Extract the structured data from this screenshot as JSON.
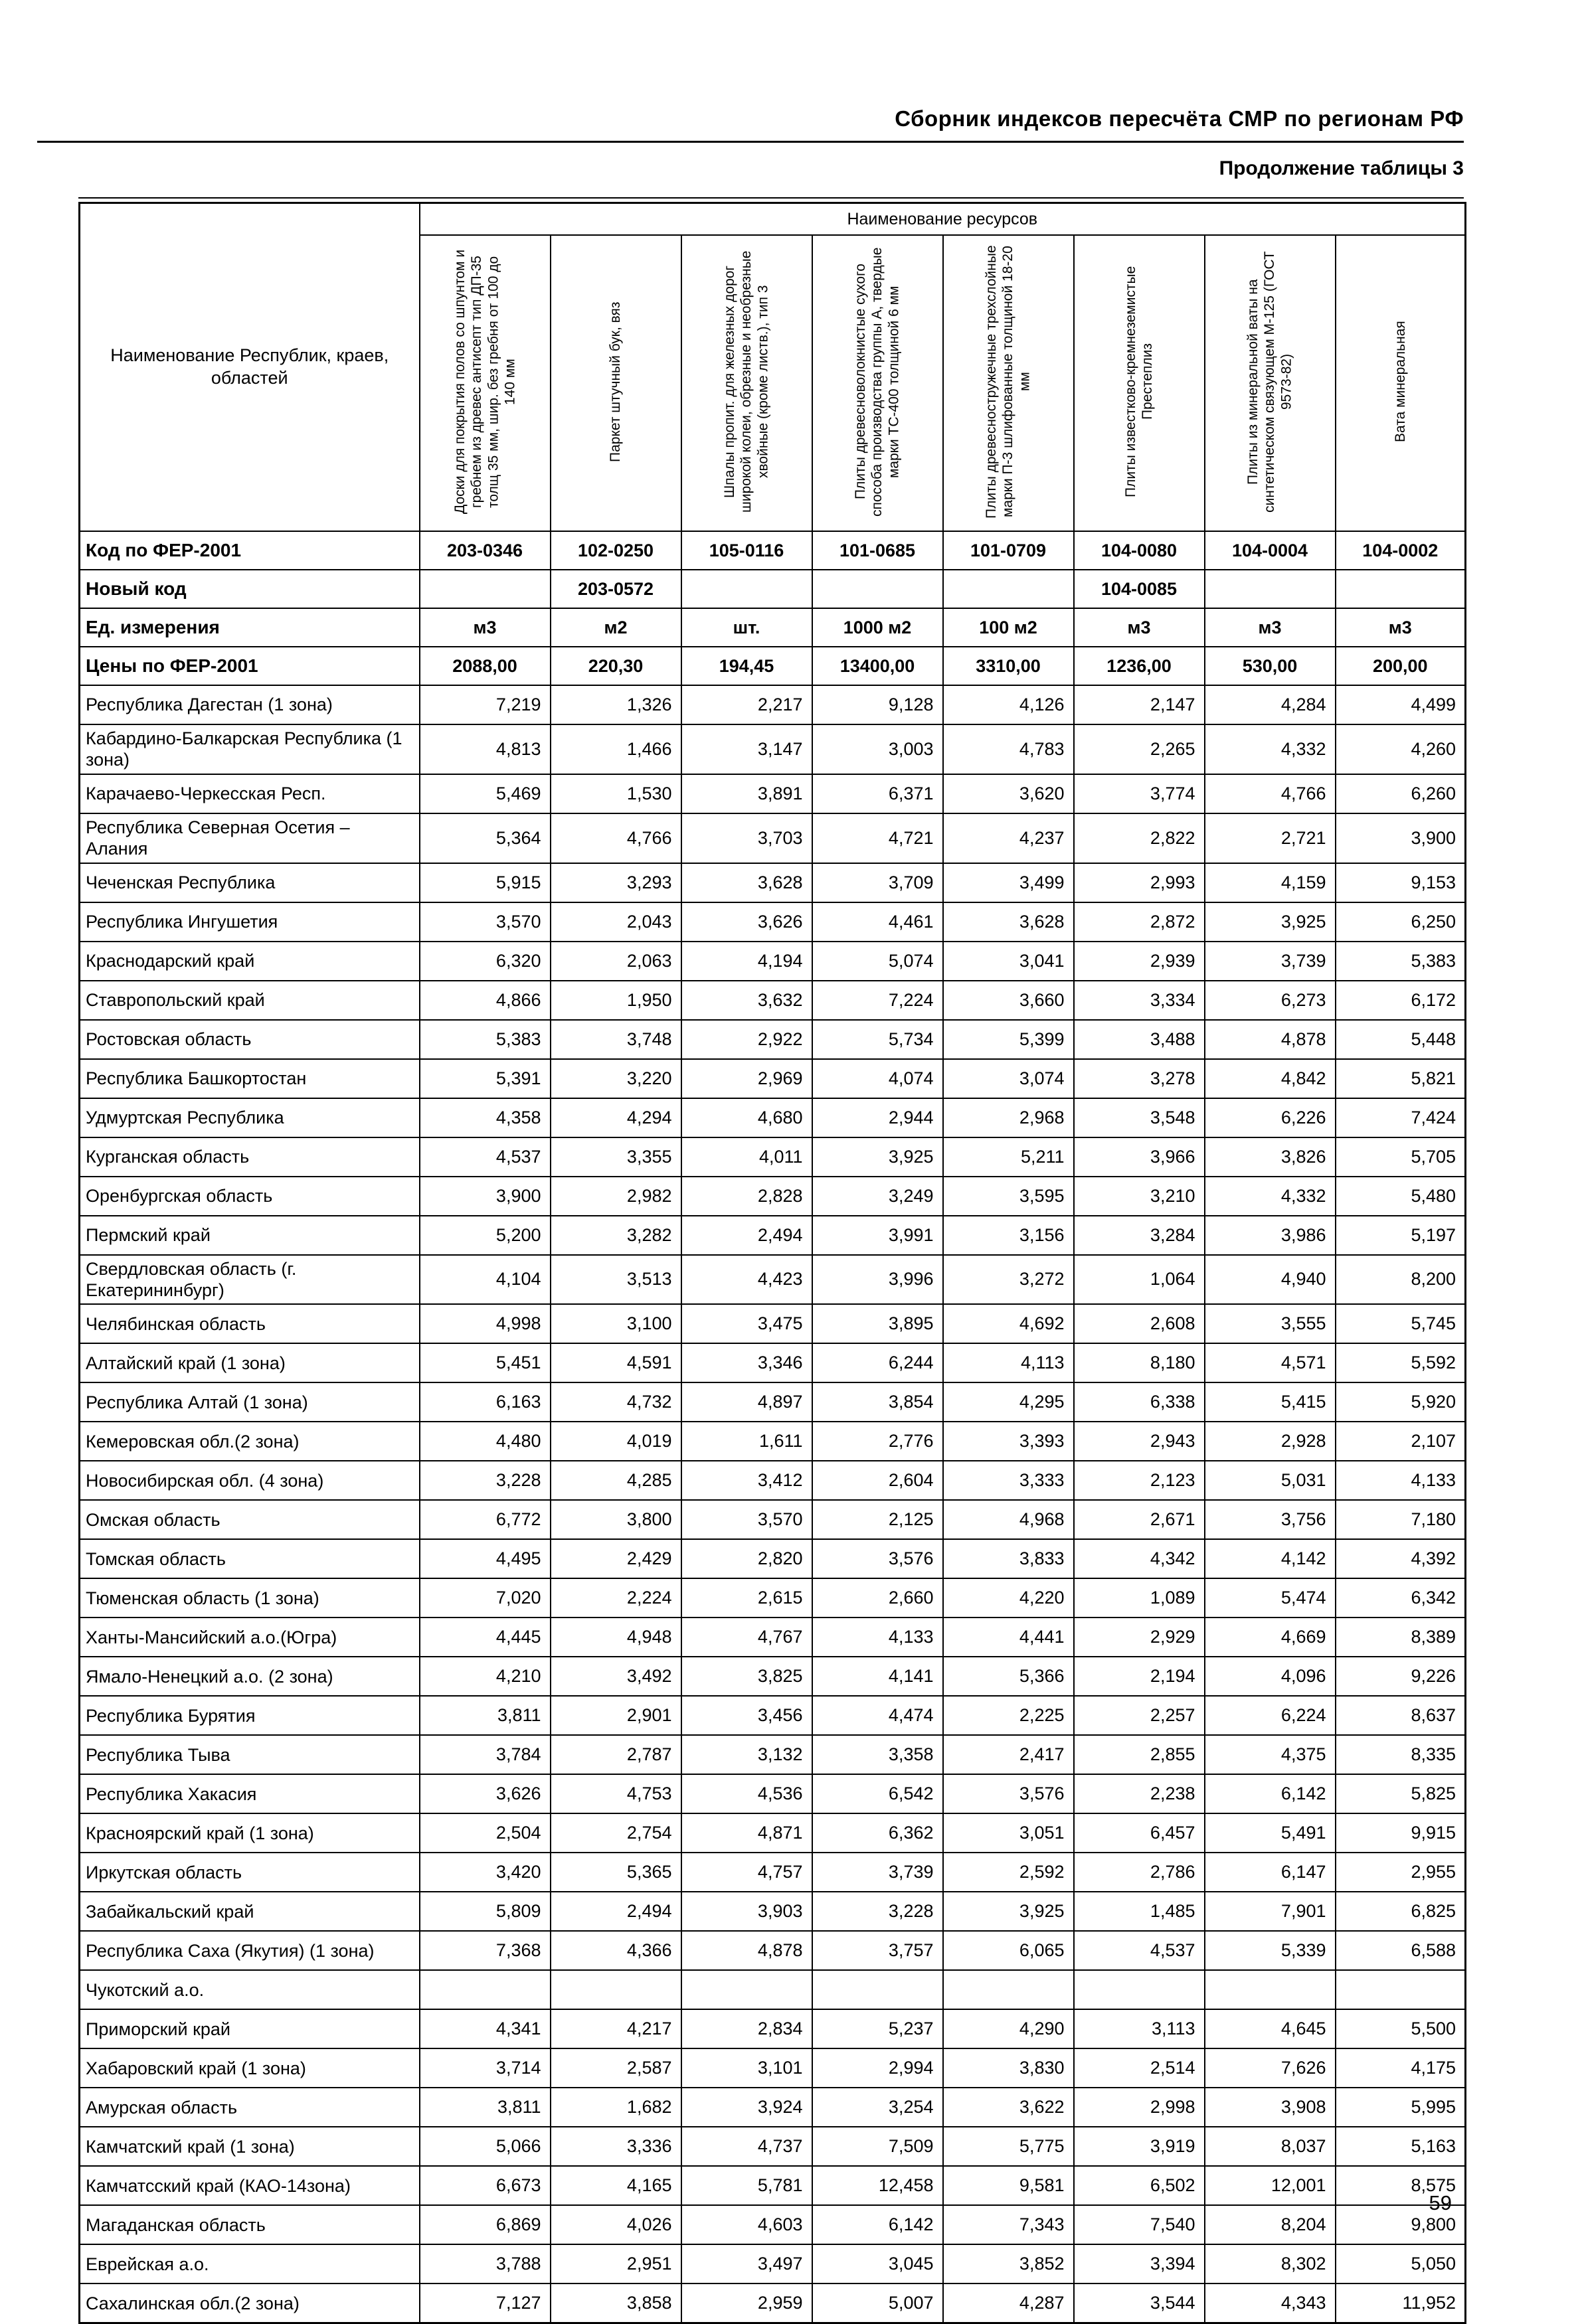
{
  "page": {
    "header_title": "Сборник индексов пересчёта СМР  по регионам РФ",
    "subtitle": "Продолжение таблицы 3",
    "page_number": "59"
  },
  "table": {
    "region_col_header": "Наименование Республик, краев, областей",
    "resources_header": "Наименование ресурсов",
    "columns": [
      "Доски для покрытия полов со шпунтом и гребнем из древес антисепт тип ДП-35 толщ 35 мм, шир. без гребня от 100 до 140 мм",
      "Паркет штучный бук, вяз",
      "Шпалы пропит. для железных дорог широкой колеи, обрезные и необрезные хвойные (кроме листв.), тип 3",
      "Плиты древесноволокнистые сухого способа производства группы А, твердые марки ТС-400 толщиной 6 мм",
      "Плиты древесностружечные трехслойные марки П-3 шлифованные толщиной 18-20 мм",
      "Плиты известково-кремнеземистые Престеплиз",
      "Плиты из минеральной ваты на синтетическом связующем М-125 (ГОСТ 9573-82)",
      "Вата минеральная"
    ],
    "meta_rows": [
      {
        "label": "Код по ФЕР-2001",
        "values": [
          "203-0346",
          "102-0250",
          "105-0116",
          "101-0685",
          "101-0709",
          "104-0080",
          "104-0004",
          "104-0002"
        ]
      },
      {
        "label": "Новый код",
        "values": [
          "",
          "203-0572",
          "",
          "",
          "",
          "104-0085",
          "",
          ""
        ]
      },
      {
        "label": "Ед. измерения",
        "values": [
          "м3",
          "м2",
          "шт.",
          "1000 м2",
          "100 м2",
          "м3",
          "м3",
          "м3"
        ]
      },
      {
        "label": "Цены по ФЕР-2001",
        "values": [
          "2088,00",
          "220,30",
          "194,45",
          "13400,00",
          "3310,00",
          "1236,00",
          "530,00",
          "200,00"
        ]
      }
    ],
    "rows": [
      {
        "region": "Республика Дагестан (1 зона)",
        "values": [
          "7,219",
          "1,326",
          "2,217",
          "9,128",
          "4,126",
          "2,147",
          "4,284",
          "4,499"
        ]
      },
      {
        "region": "Кабардино-Балкарская Республика (1 зона)",
        "values": [
          "4,813",
          "1,466",
          "3,147",
          "3,003",
          "4,783",
          "2,265",
          "4,332",
          "4,260"
        ]
      },
      {
        "region": "Карачаево-Черкесская Респ.",
        "values": [
          "5,469",
          "1,530",
          "3,891",
          "6,371",
          "3,620",
          "3,774",
          "4,766",
          "6,260"
        ]
      },
      {
        "region": "Республика Северная Осетия – Алания",
        "values": [
          "5,364",
          "4,766",
          "3,703",
          "4,721",
          "4,237",
          "2,822",
          "2,721",
          "3,900"
        ]
      },
      {
        "region": "Чеченская Республика",
        "values": [
          "5,915",
          "3,293",
          "3,628",
          "3,709",
          "3,499",
          "2,993",
          "4,159",
          "9,153"
        ]
      },
      {
        "region": "Республика Ингушетия",
        "values": [
          "3,570",
          "2,043",
          "3,626",
          "4,461",
          "3,628",
          "2,872",
          "3,925",
          "6,250"
        ]
      },
      {
        "region": "Краснодарский край",
        "values": [
          "6,320",
          "2,063",
          "4,194",
          "5,074",
          "3,041",
          "2,939",
          "3,739",
          "5,383"
        ]
      },
      {
        "region": "Ставропольский край",
        "values": [
          "4,866",
          "1,950",
          "3,632",
          "7,224",
          "3,660",
          "3,334",
          "6,273",
          "6,172"
        ]
      },
      {
        "region": "Ростовская область",
        "values": [
          "5,383",
          "3,748",
          "2,922",
          "5,734",
          "5,399",
          "3,488",
          "4,878",
          "5,448"
        ]
      },
      {
        "region": "Республика Башкортостан",
        "values": [
          "5,391",
          "3,220",
          "2,969",
          "4,074",
          "3,074",
          "3,278",
          "4,842",
          "5,821"
        ]
      },
      {
        "region": "Удмуртская Республика",
        "values": [
          "4,358",
          "4,294",
          "4,680",
          "2,944",
          "2,968",
          "3,548",
          "6,226",
          "7,424"
        ]
      },
      {
        "region": "Курганская область",
        "values": [
          "4,537",
          "3,355",
          "4,011",
          "3,925",
          "5,211",
          "3,966",
          "3,826",
          "5,705"
        ]
      },
      {
        "region": "Оренбургская область",
        "values": [
          "3,900",
          "2,982",
          "2,828",
          "3,249",
          "3,595",
          "3,210",
          "4,332",
          "5,480"
        ]
      },
      {
        "region": "Пермский край",
        "values": [
          "5,200",
          "3,282",
          "2,494",
          "3,991",
          "3,156",
          "3,284",
          "3,986",
          "5,197"
        ]
      },
      {
        "region": "Свердловская область (г. Екатерининбург)",
        "values": [
          "4,104",
          "3,513",
          "4,423",
          "3,996",
          "3,272",
          "1,064",
          "4,940",
          "8,200"
        ]
      },
      {
        "region": "Челябинская область",
        "values": [
          "4,998",
          "3,100",
          "3,475",
          "3,895",
          "4,692",
          "2,608",
          "3,555",
          "5,745"
        ]
      },
      {
        "region": "Алтайский край (1 зона)",
        "values": [
          "5,451",
          "4,591",
          "3,346",
          "6,244",
          "4,113",
          "8,180",
          "4,571",
          "5,592"
        ]
      },
      {
        "region": "Республика Алтай (1 зона)",
        "values": [
          "6,163",
          "4,732",
          "4,897",
          "3,854",
          "4,295",
          "6,338",
          "5,415",
          "5,920"
        ]
      },
      {
        "region": "Кемеровская обл.(2 зона)",
        "values": [
          "4,480",
          "4,019",
          "1,611",
          "2,776",
          "3,393",
          "2,943",
          "2,928",
          "2,107"
        ]
      },
      {
        "region": "Новосибирская обл. (4 зона)",
        "values": [
          "3,228",
          "4,285",
          "3,412",
          "2,604",
          "3,333",
          "2,123",
          "5,031",
          "4,133"
        ]
      },
      {
        "region": "Омская область",
        "values": [
          "6,772",
          "3,800",
          "3,570",
          "2,125",
          "4,968",
          "2,671",
          "3,756",
          "7,180"
        ]
      },
      {
        "region": "Томская область",
        "values": [
          "4,495",
          "2,429",
          "2,820",
          "3,576",
          "3,833",
          "4,342",
          "4,142",
          "4,392"
        ]
      },
      {
        "region": "Тюменская область (1 зона)",
        "values": [
          "7,020",
          "2,224",
          "2,615",
          "2,660",
          "4,220",
          "1,089",
          "5,474",
          "6,342"
        ]
      },
      {
        "region": "Ханты-Мансийский а.о.(Югра)",
        "values": [
          "4,445",
          "4,948",
          "4,767",
          "4,133",
          "4,441",
          "2,929",
          "4,669",
          "8,389"
        ]
      },
      {
        "region": "Ямало-Ненецкий а.о. (2 зона)",
        "values": [
          "4,210",
          "3,492",
          "3,825",
          "4,141",
          "5,366",
          "2,194",
          "4,096",
          "9,226"
        ]
      },
      {
        "region": "Республика Бурятия",
        "values": [
          "3,811",
          "2,901",
          "3,456",
          "4,474",
          "2,225",
          "2,257",
          "6,224",
          "8,637"
        ]
      },
      {
        "region": "Республика Тыва",
        "values": [
          "3,784",
          "2,787",
          "3,132",
          "3,358",
          "2,417",
          "2,855",
          "4,375",
          "8,335"
        ]
      },
      {
        "region": "Республика Хакасия",
        "values": [
          "3,626",
          "4,753",
          "4,536",
          "6,542",
          "3,576",
          "2,238",
          "6,142",
          "5,825"
        ]
      },
      {
        "region": "Красноярский край (1 зона)",
        "values": [
          "2,504",
          "2,754",
          "4,871",
          "6,362",
          "3,051",
          "6,457",
          "5,491",
          "9,915"
        ]
      },
      {
        "region": "Иркутская область",
        "values": [
          "3,420",
          "5,365",
          "4,757",
          "3,739",
          "2,592",
          "2,786",
          "6,147",
          "2,955"
        ]
      },
      {
        "region": "Забайкальский край",
        "values": [
          "5,809",
          "2,494",
          "3,903",
          "3,228",
          "3,925",
          "1,485",
          "7,901",
          "6,825"
        ]
      },
      {
        "region": "Республика Саха (Якутия) (1 зона)",
        "values": [
          "7,368",
          "4,366",
          "4,878",
          "3,757",
          "6,065",
          "4,537",
          "5,339",
          "6,588"
        ]
      },
      {
        "region": "Чукотский а.о.",
        "values": [
          "",
          "",
          "",
          "",
          "",
          "",
          "",
          ""
        ]
      },
      {
        "region": "Приморский край",
        "values": [
          "4,341",
          "4,217",
          "2,834",
          "5,237",
          "4,290",
          "3,113",
          "4,645",
          "5,500"
        ]
      },
      {
        "region": "Хабаровский край (1 зона)",
        "values": [
          "3,714",
          "2,587",
          "3,101",
          "2,994",
          "3,830",
          "2,514",
          "7,626",
          "4,175"
        ]
      },
      {
        "region": "Амурская область",
        "values": [
          "3,811",
          "1,682",
          "3,924",
          "3,254",
          "3,622",
          "2,998",
          "3,908",
          "5,995"
        ]
      },
      {
        "region": "Камчатский край (1 зона)",
        "values": [
          "5,066",
          "3,336",
          "4,737",
          "7,509",
          "5,775",
          "3,919",
          "8,037",
          "5,163"
        ]
      },
      {
        "region": "Камчатсский край (КАО-14зона)",
        "values": [
          "6,673",
          "4,165",
          "5,781",
          "12,458",
          "9,581",
          "6,502",
          "12,001",
          "8,575"
        ]
      },
      {
        "region": "Магаданская область",
        "values": [
          "6,869",
          "4,026",
          "4,603",
          "6,142",
          "7,343",
          "7,540",
          "8,204",
          "9,800"
        ]
      },
      {
        "region": "Еврейская а.о.",
        "values": [
          "3,788",
          "2,951",
          "3,497",
          "3,045",
          "3,852",
          "3,394",
          "8,302",
          "5,050"
        ]
      },
      {
        "region": "Сахалинская обл.(2 зона)",
        "values": [
          "7,127",
          "3,858",
          "2,959",
          "5,007",
          "4,287",
          "3,544",
          "4,343",
          "11,952"
        ]
      }
    ]
  }
}
